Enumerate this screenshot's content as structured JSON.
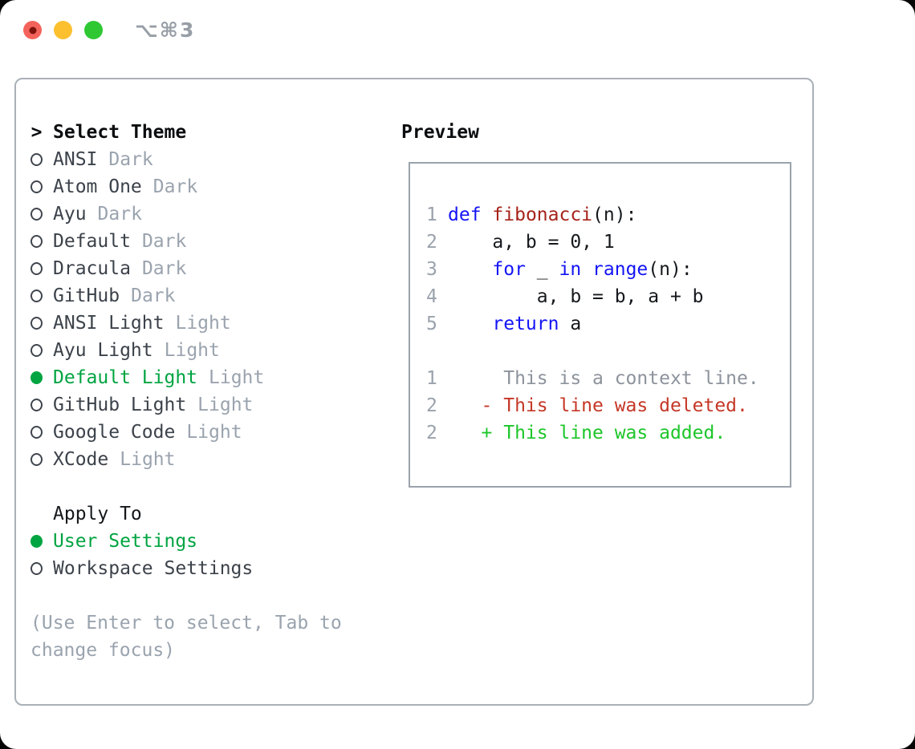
{
  "window": {
    "shortcut": "⌥⌘3",
    "traffic_lights": [
      {
        "name": "close",
        "color": "#f4635b",
        "dot": true,
        "dot_color": "#7e130c"
      },
      {
        "name": "minimize",
        "color": "#fcc02f",
        "dot": false,
        "dot_color": ""
      },
      {
        "name": "zoom",
        "color": "#2fc833",
        "dot": false,
        "dot_color": ""
      }
    ]
  },
  "theme_picker": {
    "title": "Select Theme",
    "title_prefix": ">",
    "items": [
      {
        "name": "ANSI",
        "tag": "Dark",
        "selected": false
      },
      {
        "name": "Atom One",
        "tag": "Dark",
        "selected": false
      },
      {
        "name": "Ayu",
        "tag": "Dark",
        "selected": false
      },
      {
        "name": "Default",
        "tag": "Dark",
        "selected": false
      },
      {
        "name": "Dracula",
        "tag": "Dark",
        "selected": false
      },
      {
        "name": "GitHub",
        "tag": "Dark",
        "selected": false
      },
      {
        "name": "ANSI Light",
        "tag": "Light",
        "selected": false
      },
      {
        "name": "Ayu Light",
        "tag": "Light",
        "selected": false
      },
      {
        "name": "Default Light",
        "tag": "Light",
        "selected": true
      },
      {
        "name": "GitHub Light",
        "tag": "Light",
        "selected": false
      },
      {
        "name": "Google Code",
        "tag": "Light",
        "selected": false
      },
      {
        "name": "XCode",
        "tag": "Light",
        "selected": false
      }
    ],
    "apply_to": {
      "title": "Apply To",
      "options": [
        {
          "name": "User Settings",
          "selected": true
        },
        {
          "name": "Workspace Settings",
          "selected": false
        }
      ]
    },
    "hint": "(Use Enter to select, Tab to change focus)"
  },
  "preview": {
    "title": "Preview",
    "lines": [
      {
        "num": "1",
        "segments": [
          {
            "t": "def",
            "c": "kw"
          },
          {
            "t": " ",
            "c": "plain"
          },
          {
            "t": "fibonacci",
            "c": "fn"
          },
          {
            "t": "(n):",
            "c": "plain"
          }
        ]
      },
      {
        "num": "2",
        "segments": [
          {
            "t": "    a, b = 0, 1",
            "c": "plain"
          }
        ]
      },
      {
        "num": "3",
        "segments": [
          {
            "t": "    ",
            "c": "plain"
          },
          {
            "t": "for",
            "c": "kw"
          },
          {
            "t": " _ ",
            "c": "plain"
          },
          {
            "t": "in",
            "c": "kw"
          },
          {
            "t": " ",
            "c": "plain"
          },
          {
            "t": "range",
            "c": "kw"
          },
          {
            "t": "(n):",
            "c": "plain"
          }
        ]
      },
      {
        "num": "4",
        "segments": [
          {
            "t": "        a, b = b, a + b",
            "c": "plain"
          }
        ]
      },
      {
        "num": "5",
        "segments": [
          {
            "t": "    ",
            "c": "plain"
          },
          {
            "t": "return",
            "c": "kw"
          },
          {
            "t": " a",
            "c": "plain"
          }
        ]
      },
      {
        "blank": true
      },
      {
        "num": "1",
        "segments": [
          {
            "t": "     This is a context line.",
            "c": "ctx"
          }
        ]
      },
      {
        "num": "2",
        "segments": [
          {
            "t": "   - This line was deleted.",
            "c": "del"
          }
        ]
      },
      {
        "num": "2",
        "segments": [
          {
            "t": "   + This line was added.",
            "c": "add"
          }
        ]
      }
    ]
  },
  "colors": {
    "selected_green": "#00a441",
    "keyword_blue": "#1414f5",
    "function_red": "#a6241a",
    "deleted_red": "#c53726",
    "added_green": "#1dc62a",
    "muted_gray": "#9aa3ae",
    "panel_border": "#a9b0b8"
  }
}
